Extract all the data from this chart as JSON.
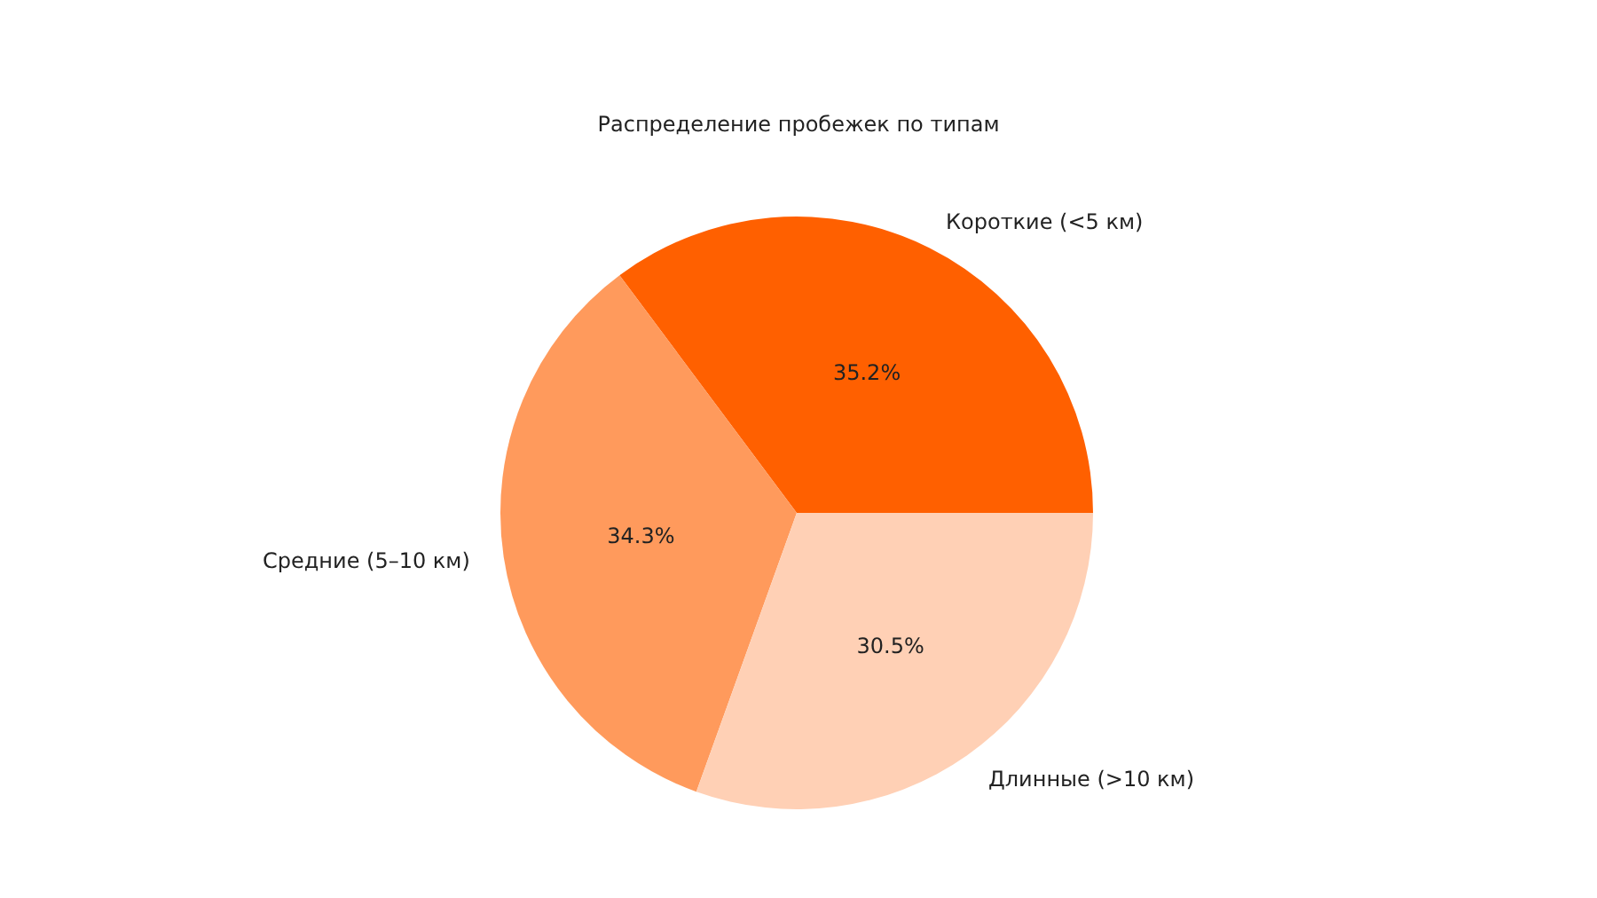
{
  "chart_data": {
    "type": "pie",
    "title": "Распределение пробежек по типам",
    "categories": [
      "Короткие (<5 км)",
      "Средние (5–10 км)",
      "Длинные (>10 км)"
    ],
    "values": [
      35.2,
      34.3,
      30.5
    ],
    "value_labels": [
      "35.2%",
      "34.3%",
      "30.5%"
    ],
    "colors": [
      "#ff6000",
      "#ff9a5c",
      "#ffd0b5"
    ]
  }
}
